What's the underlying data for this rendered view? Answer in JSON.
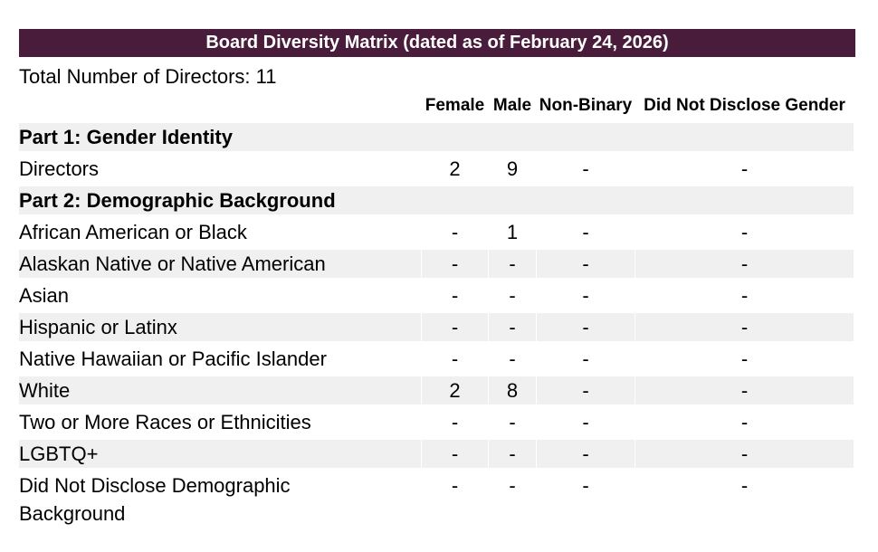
{
  "title_bar": {
    "title": "Board Diversity Matrix (dated as of February 24, 2026)",
    "background_color": "#4a1c3b",
    "text_color": "#ffffff"
  },
  "total": {
    "label": "Total Number of Directors:",
    "value": "11"
  },
  "table": {
    "columns": [
      "Female",
      "Male",
      "Non-Binary",
      "Did Not Disclose Gender"
    ],
    "stripe_color": "#f0f0f0",
    "sections": [
      {
        "heading": "Part 1: Gender Identity",
        "rows": [
          {
            "label": "Directors",
            "values": [
              "2",
              "9",
              "-",
              "-"
            ]
          }
        ]
      },
      {
        "heading": "Part 2: Demographic Background",
        "rows": [
          {
            "label": "African American or Black",
            "values": [
              "-",
              "1",
              "-",
              "-"
            ]
          },
          {
            "label": "Alaskan Native or Native American",
            "values": [
              "-",
              "-",
              "-",
              "-"
            ]
          },
          {
            "label": "Asian",
            "values": [
              "-",
              "-",
              "-",
              "-"
            ]
          },
          {
            "label": "Hispanic or Latinx",
            "values": [
              "-",
              "-",
              "-",
              "-"
            ]
          },
          {
            "label": "Native Hawaiian or Pacific Islander",
            "values": [
              "-",
              "-",
              "-",
              "-"
            ]
          },
          {
            "label": "White",
            "values": [
              "2",
              "8",
              "-",
              "-"
            ]
          },
          {
            "label": "Two or More Races or Ethnicities",
            "values": [
              "-",
              "-",
              "-",
              "-"
            ]
          },
          {
            "label": "LGBTQ+",
            "values": [
              "-",
              "-",
              "-",
              "-"
            ]
          },
          {
            "label": "Did Not Disclose Demographic Background",
            "values": [
              "-",
              "-",
              "-",
              "-"
            ]
          }
        ]
      }
    ]
  }
}
